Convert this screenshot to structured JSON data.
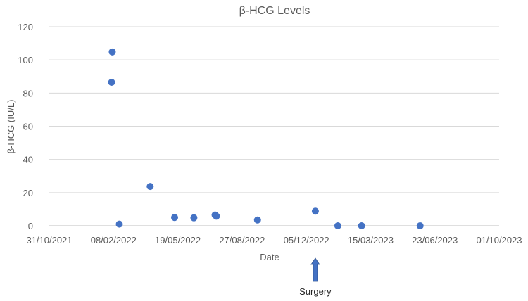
{
  "chart_data": {
    "type": "scatter",
    "title": "β-HCG Levels",
    "xlabel": "Date",
    "ylabel": "β-HCG (IU/L)",
    "ylim": [
      0,
      120
    ],
    "yticks": [
      0,
      20,
      40,
      60,
      80,
      100,
      120
    ],
    "xlim": [
      "2021-10-31",
      "2023-10-01"
    ],
    "xticks": [
      "2021-10-31",
      "2022-02-08",
      "2022-05-19",
      "2022-08-27",
      "2022-12-05",
      "2023-03-15",
      "2023-06-23",
      "2023-10-01"
    ],
    "xtick_labels": [
      "31/10/2021",
      "08/02/2022",
      "19/05/2022",
      "27/08/2022",
      "05/12/2022",
      "15/03/2023",
      "23/06/2023",
      "01/10/2023"
    ],
    "grid": true,
    "marker_color": "#4472c4",
    "points": [
      {
        "x": "2022-02-05",
        "y": 86.5
      },
      {
        "x": "2022-02-06",
        "y": 104.8
      },
      {
        "x": "2022-02-17",
        "y": 1.0
      },
      {
        "x": "2022-04-06",
        "y": 23.7
      },
      {
        "x": "2022-05-14",
        "y": 5.0
      },
      {
        "x": "2022-06-13",
        "y": 4.8
      },
      {
        "x": "2022-07-16",
        "y": 6.5
      },
      {
        "x": "2022-07-18",
        "y": 5.8
      },
      {
        "x": "2022-09-20",
        "y": 3.5
      },
      {
        "x": "2022-12-19",
        "y": 8.8
      },
      {
        "x": "2023-01-23",
        "y": 0.0
      },
      {
        "x": "2023-03-01",
        "y": 0.0
      },
      {
        "x": "2023-05-31",
        "y": 0.0
      }
    ],
    "annotations": [
      {
        "text": "Surgery",
        "x": "2022-12-19",
        "marker": "up-arrow",
        "color": "#4472c4"
      }
    ]
  }
}
